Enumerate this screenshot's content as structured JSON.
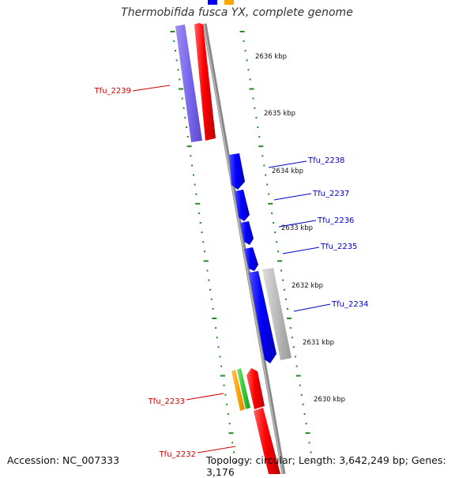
{
  "title": "Thermobifida fusca YX, complete genome",
  "accession": "Accession: NC_007333",
  "summary": "Topology: circular; Length: 3,642,249 bp; Genes: 3,176",
  "colors": {
    "forward_gene": "#0000ff",
    "reverse_gene": "#ff0000",
    "other_gene": "#ffa500",
    "rrna_green": "#33cc33",
    "violet_block": "#7b68ee",
    "gray_block": "#bbbbbb",
    "backbone": "#888888",
    "ticks": "#228b22"
  },
  "kbp_labels": [
    "2636 kbp",
    "2635 kbp",
    "2634 kbp",
    "2633 kbp",
    "2632 kbp",
    "2631 kbp",
    "2630 kbp"
  ],
  "gene_labels": {
    "forward": [
      "Tfu_2238",
      "Tfu_2237",
      "Tfu_2236",
      "Tfu_2235",
      "Tfu_2234"
    ],
    "reverse": [
      "Tfu_2239",
      "Tfu_2233",
      "Tfu_2232"
    ]
  }
}
